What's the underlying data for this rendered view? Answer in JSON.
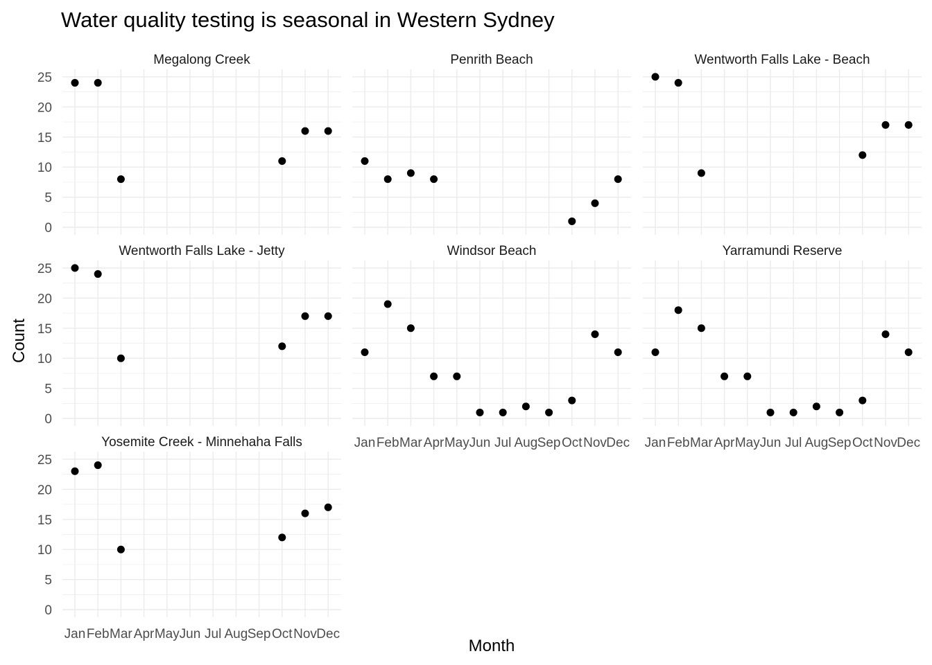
{
  "chart_data": {
    "type": "scatter",
    "title": "Water quality testing is seasonal in Western Sydney",
    "xlabel": "Month",
    "ylabel": "Count",
    "months": [
      "Jan",
      "Feb",
      "Mar",
      "Apr",
      "May",
      "Jun",
      "Jul",
      "Aug",
      "Sep",
      "Oct",
      "Nov",
      "Dec"
    ],
    "y_ticks": [
      0,
      5,
      10,
      15,
      20,
      25
    ],
    "ylim": [
      0,
      25
    ],
    "grid": true,
    "facets": [
      {
        "name": "Megalong Creek",
        "points": [
          {
            "x": "Jan",
            "y": 24
          },
          {
            "x": "Feb",
            "y": 24
          },
          {
            "x": "Mar",
            "y": 8
          },
          {
            "x": "Oct",
            "y": 11
          },
          {
            "x": "Nov",
            "y": 16
          },
          {
            "x": "Dec",
            "y": 16
          }
        ]
      },
      {
        "name": "Penrith Beach",
        "points": [
          {
            "x": "Jan",
            "y": 11
          },
          {
            "x": "Feb",
            "y": 8
          },
          {
            "x": "Mar",
            "y": 9
          },
          {
            "x": "Apr",
            "y": 8
          },
          {
            "x": "Oct",
            "y": 1
          },
          {
            "x": "Nov",
            "y": 4
          },
          {
            "x": "Dec",
            "y": 8
          }
        ]
      },
      {
        "name": "Wentworth Falls Lake - Beach",
        "points": [
          {
            "x": "Jan",
            "y": 25
          },
          {
            "x": "Feb",
            "y": 24
          },
          {
            "x": "Mar",
            "y": 9
          },
          {
            "x": "Oct",
            "y": 12
          },
          {
            "x": "Nov",
            "y": 17
          },
          {
            "x": "Dec",
            "y": 17
          }
        ]
      },
      {
        "name": "Wentworth Falls Lake - Jetty",
        "points": [
          {
            "x": "Jan",
            "y": 25
          },
          {
            "x": "Feb",
            "y": 24
          },
          {
            "x": "Mar",
            "y": 10
          },
          {
            "x": "Oct",
            "y": 12
          },
          {
            "x": "Nov",
            "y": 17
          },
          {
            "x": "Dec",
            "y": 17
          }
        ]
      },
      {
        "name": "Windsor Beach",
        "points": [
          {
            "x": "Jan",
            "y": 11
          },
          {
            "x": "Feb",
            "y": 19
          },
          {
            "x": "Mar",
            "y": 15
          },
          {
            "x": "Apr",
            "y": 7
          },
          {
            "x": "May",
            "y": 7
          },
          {
            "x": "Jun",
            "y": 1
          },
          {
            "x": "Jul",
            "y": 1
          },
          {
            "x": "Aug",
            "y": 2
          },
          {
            "x": "Sep",
            "y": 1
          },
          {
            "x": "Oct",
            "y": 3
          },
          {
            "x": "Nov",
            "y": 14
          },
          {
            "x": "Dec",
            "y": 11
          }
        ]
      },
      {
        "name": "Yarramundi Reserve",
        "points": [
          {
            "x": "Jan",
            "y": 11
          },
          {
            "x": "Feb",
            "y": 18
          },
          {
            "x": "Mar",
            "y": 15
          },
          {
            "x": "Apr",
            "y": 7
          },
          {
            "x": "May",
            "y": 7
          },
          {
            "x": "Jun",
            "y": 1
          },
          {
            "x": "Jul",
            "y": 1
          },
          {
            "x": "Aug",
            "y": 2
          },
          {
            "x": "Sep",
            "y": 1
          },
          {
            "x": "Oct",
            "y": 3
          },
          {
            "x": "Nov",
            "y": 14
          },
          {
            "x": "Dec",
            "y": 11
          }
        ]
      },
      {
        "name": "Yosemite Creek - Minnehaha Falls",
        "points": [
          {
            "x": "Jan",
            "y": 23
          },
          {
            "x": "Feb",
            "y": 24
          },
          {
            "x": "Mar",
            "y": 10
          },
          {
            "x": "Oct",
            "y": 12
          },
          {
            "x": "Nov",
            "y": 16
          },
          {
            "x": "Dec",
            "y": 17
          }
        ]
      }
    ],
    "point_color": "#000000",
    "grid_color": "#ebebeb"
  }
}
